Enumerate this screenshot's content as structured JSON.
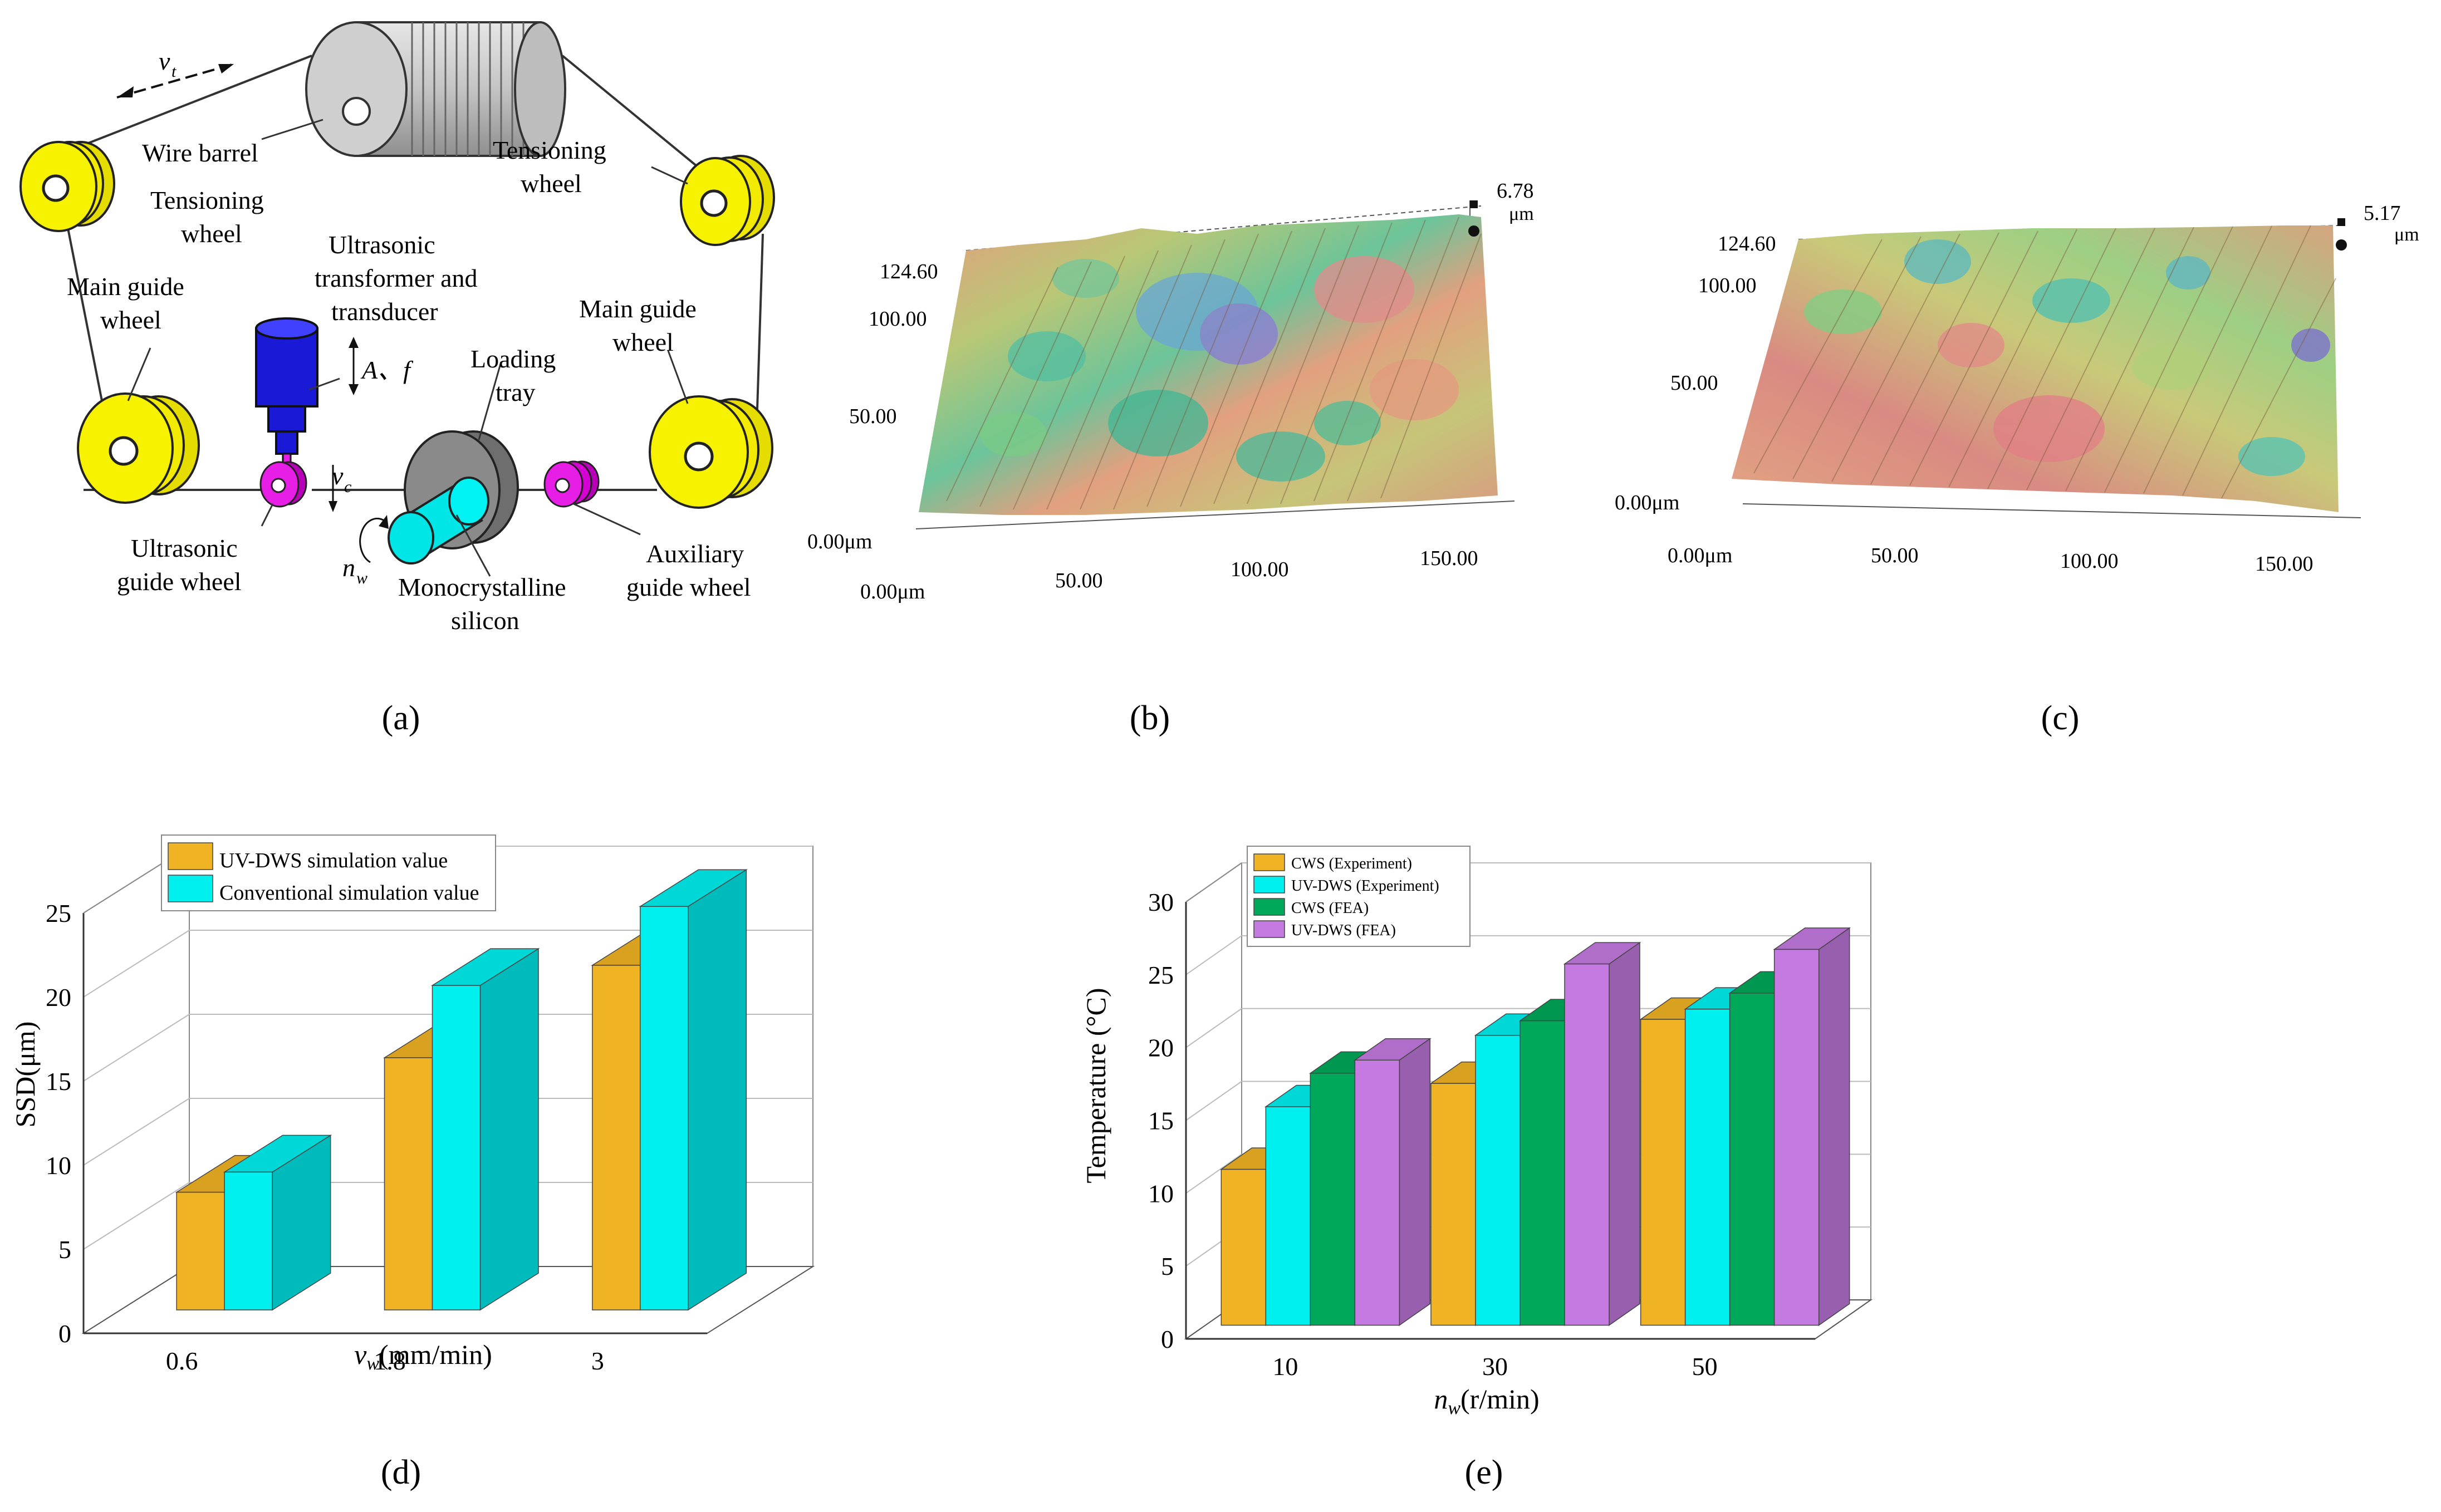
{
  "panel_a": {
    "caption": "(a)",
    "velocity_label": "v",
    "velocity_sub": "t",
    "wire_barrel": "Wire barrel",
    "tensioning_left": [
      "Tensioning",
      "wheel"
    ],
    "tensioning_right": [
      "Tensioning",
      "wheel"
    ],
    "main_guide_left": [
      "Main guide",
      "wheel"
    ],
    "main_guide_right": [
      "Main guide",
      "wheel"
    ],
    "ultrasonic_transducer": [
      "Ultrasonic",
      "transformer and",
      "transducer"
    ],
    "amplitude_freq": "A、f",
    "cut_speed": "v",
    "cut_speed_sub": "c",
    "loading_tray": [
      "Loading",
      "tray"
    ],
    "ultrasonic_guide": [
      "Ultrasonic",
      "guide wheel"
    ],
    "rotation": "n",
    "rotation_sub": "w",
    "mono_silicon": [
      "Monocrystalline",
      "silicon"
    ],
    "auxiliary_guide": [
      "Auxiliary",
      "guide wheel"
    ],
    "colors": {
      "wheel": "#f7f200",
      "transducer": "#1a1ad6",
      "guide_small": "#e61ee6",
      "silicon": "#00e5e5",
      "barrel": "#c8c8c8",
      "tray": "#8a8a8a"
    }
  },
  "panel_b": {
    "caption": "(b)",
    "z_max": "6.78",
    "z_unit": "μm",
    "y_ticks": [
      "124.60",
      "100.00",
      "50.00",
      "0.00μm"
    ],
    "x_ticks": [
      "0.00μm",
      "50.00",
      "100.00",
      "150.00"
    ]
  },
  "panel_c": {
    "caption": "(c)",
    "z_max": "5.17",
    "z_unit": "μm",
    "y_ticks": [
      "124.60",
      "100.00",
      "50.00",
      "0.00μm"
    ],
    "x_ticks": [
      "0.00μm",
      "50.00",
      "100.00",
      "150.00"
    ]
  },
  "chart_data": [
    {
      "id": "d",
      "type": "bar",
      "caption": "(d)",
      "title": "",
      "xlabel_main": "v",
      "xlabel_sub": "w",
      "xlabel_unit": "(mm/min)",
      "ylabel": "SSD(μm)",
      "ylim": [
        0,
        25
      ],
      "yticks": [
        "0",
        "5",
        "10",
        "15",
        "20",
        "25"
      ],
      "categories": [
        "0.6",
        "1.8",
        "3"
      ],
      "legend_position": "top-left",
      "series": [
        {
          "name": "UV-DWS simulation value",
          "color": "#f0b323",
          "values": [
            7,
            15,
            20.5
          ]
        },
        {
          "name": "Conventional simulation value",
          "color": "#00f0f0",
          "values": [
            8.2,
            19.3,
            24
          ]
        }
      ]
    },
    {
      "id": "e",
      "type": "bar",
      "caption": "(e)",
      "title": "",
      "xlabel_main": "n",
      "xlabel_sub": "w",
      "xlabel_unit": "(r/min)",
      "ylabel": "Temperature (°C)",
      "ylim": [
        0,
        30
      ],
      "yticks": [
        "0",
        "5",
        "10",
        "15",
        "20",
        "25",
        "30"
      ],
      "categories": [
        "10",
        "30",
        "50"
      ],
      "legend_position": "top-left",
      "series": [
        {
          "name": "CWS (Experiment)",
          "color": "#f0b323",
          "values": [
            10.7,
            16.6,
            21
          ]
        },
        {
          "name": "UV-DWS (Experiment)",
          "color": "#00f0f0",
          "values": [
            15,
            19.9,
            21.7
          ]
        },
        {
          "name": "CWS (FEA)",
          "color": "#00a85a",
          "values": [
            17.3,
            20.9,
            22.8
          ]
        },
        {
          "name": "UV-DWS (FEA)",
          "color": "#c47ae0",
          "values": [
            18.2,
            24.8,
            25.8
          ]
        }
      ]
    }
  ]
}
